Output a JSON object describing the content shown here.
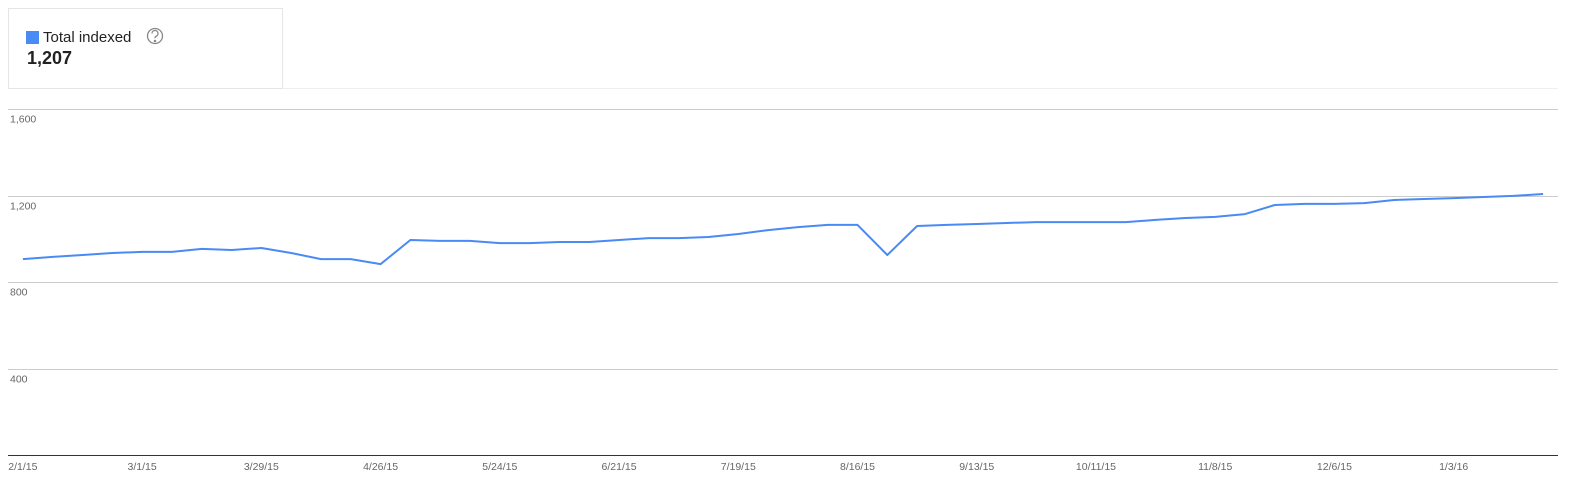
{
  "chart_data": {
    "type": "line",
    "series": [
      {
        "name": "Total indexed",
        "color": "#4a8af4",
        "values": [
          906,
          916,
          925,
          934,
          939,
          939,
          953,
          948,
          957,
          934,
          906,
          906,
          883,
          994,
          990,
          990,
          980,
          980,
          985,
          985,
          994,
          1003,
          1003,
          1008,
          1022,
          1040,
          1054,
          1064,
          1064,
          925,
          1059,
          1064,
          1068,
          1073,
          1077,
          1077,
          1077,
          1077,
          1087,
          1096,
          1101,
          1114,
          1156,
          1161,
          1161,
          1165,
          1179,
          1184,
          1188,
          1193,
          1198,
          1207
        ]
      }
    ],
    "summary": {
      "value": 1207,
      "label": "1,207"
    },
    "categories": [
      "2/1/15",
      null,
      null,
      null,
      "3/1/15",
      null,
      null,
      null,
      "3/29/15",
      null,
      null,
      null,
      "4/26/15",
      null,
      null,
      null,
      "5/24/15",
      null,
      null,
      null,
      "6/21/15",
      null,
      null,
      null,
      "7/19/15",
      null,
      null,
      null,
      "8/16/15",
      null,
      null,
      null,
      "9/13/15",
      null,
      null,
      null,
      "10/11/15",
      null,
      null,
      null,
      "11/8/15",
      null,
      null,
      null,
      "12/6/15",
      null,
      null,
      null,
      "1/3/16",
      null,
      null,
      null
    ],
    "ylim": [
      0,
      1600
    ],
    "yticks": [
      400,
      800,
      {
        "value": 1200,
        "label": "1,200"
      },
      {
        "value": 1600,
        "label": "1,600"
      }
    ],
    "grid": true
  }
}
